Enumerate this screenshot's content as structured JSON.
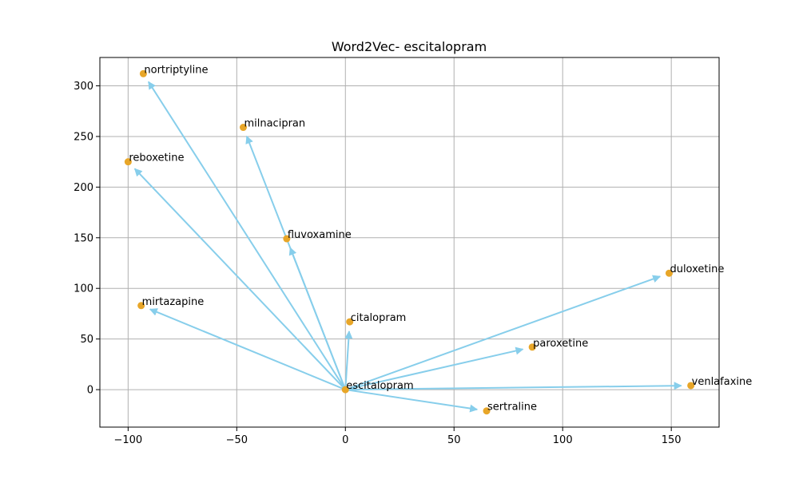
{
  "chart_data": {
    "type": "scatter",
    "title": "Word2Vec- escitalopram",
    "xlabel": "",
    "ylabel": "",
    "xlim": [
      -113,
      172
    ],
    "ylim": [
      -37,
      328
    ],
    "xticks": [
      -100,
      -50,
      0,
      50,
      100,
      150
    ],
    "yticks": [
      0,
      50,
      100,
      150,
      200,
      250,
      300
    ],
    "xtick_labels": [
      "−100",
      "−50",
      "0",
      "50",
      "100",
      "150"
    ],
    "ytick_labels": [
      "0",
      "50",
      "100",
      "150",
      "200",
      "250",
      "300"
    ],
    "grid": true,
    "origin": {
      "label": "escitalopram",
      "x": 0,
      "y": 0
    },
    "points": [
      {
        "label": "nortriptyline",
        "x": -93,
        "y": 312
      },
      {
        "label": "milnacipran",
        "x": -47,
        "y": 259
      },
      {
        "label": "reboxetine",
        "x": -100,
        "y": 225
      },
      {
        "label": "fluvoxamine",
        "x": -27,
        "y": 149
      },
      {
        "label": "duloxetine",
        "x": 149,
        "y": 115
      },
      {
        "label": "mirtazapine",
        "x": -94,
        "y": 83
      },
      {
        "label": "citalopram",
        "x": 2,
        "y": 67
      },
      {
        "label": "paroxetine",
        "x": 86,
        "y": 42
      },
      {
        "label": "venlafaxine",
        "x": 159,
        "y": 4
      },
      {
        "label": "sertraline",
        "x": 65,
        "y": -21
      }
    ],
    "colors": {
      "point": "#e8a628",
      "arrow": "#87ceeb",
      "grid": "#b0b0b0",
      "axis": "#000000"
    }
  }
}
